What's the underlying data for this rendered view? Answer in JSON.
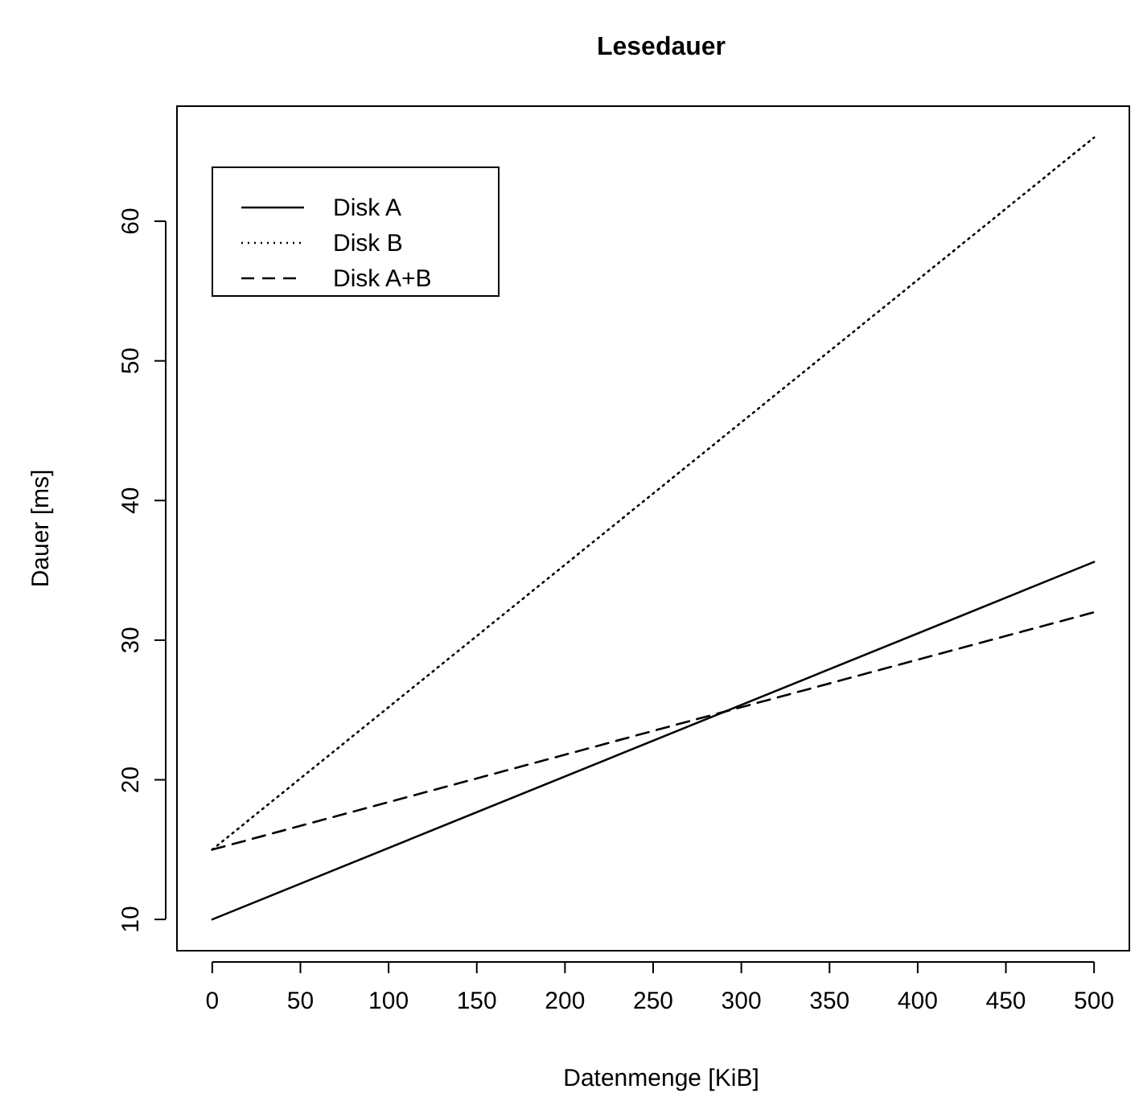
{
  "chart_data": {
    "type": "line",
    "title": "Lesedauer",
    "xlabel": "Datenmenge [KiB]",
    "ylabel": "Dauer [ms]",
    "x": [
      0,
      500
    ],
    "series": [
      {
        "name": "Disk A",
        "color": "#000000",
        "values": [
          10,
          35.6
        ],
        "line_style": "solid"
      },
      {
        "name": "Disk B",
        "color": "#000000",
        "values": [
          15,
          66
        ],
        "line_style": "dotted"
      },
      {
        "name": "Disk A+B",
        "color": "#000000",
        "values": [
          15,
          32
        ],
        "line_style": "dashed"
      }
    ],
    "xlim": [
      -20,
      520
    ],
    "ylim": [
      7.76,
      68.24
    ],
    "xticks": [
      0,
      50,
      100,
      150,
      200,
      250,
      300,
      350,
      400,
      450,
      500
    ],
    "yticks": [
      10,
      20,
      30,
      40,
      50,
      60
    ],
    "legend": "top left",
    "grid": false,
    "marker": "none"
  }
}
